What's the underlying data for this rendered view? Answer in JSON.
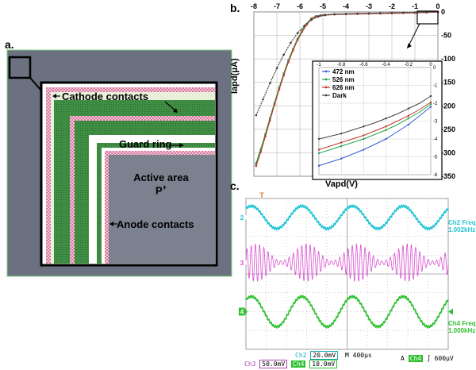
{
  "panels": {
    "a": {
      "label": "a.",
      "annotations": {
        "cathode": "Cathode contacts",
        "guard": "Guard ring",
        "active_line1": "Active area",
        "active_line2": "P",
        "active_sup": "+",
        "anode": "Anode contacts"
      },
      "colors": {
        "chip": "#6b7180",
        "metal": "#3f8e43",
        "contact": "#e9a0b8",
        "light": "#e8f0da"
      }
    },
    "b": {
      "label": "b.",
      "ylabel": "Iapd(μA)",
      "xlabel": "Vapd(V)",
      "inset_legend": [
        "472 nm",
        "526 nm",
        "626 nm",
        "Dark"
      ],
      "colors": {
        "472 nm": "#3b5bd6",
        "526 nm": "#21a64a",
        "626 nm": "#c0392b",
        "Dark": "#444444"
      }
    },
    "c": {
      "label": "c.",
      "marker_top": "T",
      "ch2_marker": "2",
      "ch3_marker": "3",
      "ch4_marker": "4",
      "ch2_right_line1": "Ch2 Freq",
      "ch2_right_line2": "1.002kHz",
      "ch4_right_line1": "Ch4 Freq",
      "ch4_right_line2": "1.000kHz",
      "status": {
        "ch2_label": "Ch2",
        "ch2_value": "20.0mV",
        "ch3_label": "Ch3",
        "ch3_value": "50.0mV",
        "ch4_label": "Ch4",
        "ch4_value": "10.0mV",
        "timebase": "M 400μs",
        "trigger_a": "A",
        "trigger_ch": "Ch4",
        "trigger_level": "600μV"
      },
      "colors": {
        "ch2": "#22c5d6",
        "ch3": "#d94fd0",
        "ch4": "#2fc12f",
        "trigger": "#e07b20"
      }
    }
  },
  "chart_data": [
    {
      "type": "line",
      "title": "",
      "xlabel": "Vapd(V)",
      "ylabel": "Iapd(μA)",
      "xlim": [
        -8,
        0
      ],
      "ylim": [
        -350,
        0
      ],
      "xticks": [
        "-8",
        "-7",
        "-6",
        "-5",
        "-4",
        "-3",
        "-2",
        "-1",
        "0"
      ],
      "yticks": [
        "0",
        "-50",
        "-100",
        "-150",
        "-200",
        "-250",
        "-300",
        "-350"
      ],
      "grid": true,
      "series": [
        {
          "name": "472 nm",
          "x": [
            -7.9,
            -7.7,
            -7.5,
            -7.3,
            -7.1,
            -6.9,
            -6.7,
            -6.5,
            -6.3,
            -6.1,
            -5.9,
            -5.7,
            -5.5,
            -5.3,
            -5.1,
            -4.9,
            -4.5,
            -4.0,
            -3.5,
            -3.0,
            -2.5,
            -2.0,
            -1.5,
            -1.0,
            -0.5,
            0
          ],
          "y": [
            -325,
            -295,
            -262,
            -228,
            -195,
            -163,
            -133,
            -105,
            -80,
            -58,
            -40,
            -26,
            -14,
            -9,
            -7,
            -6,
            -5,
            -4.5,
            -4,
            -3.5,
            -3,
            -2.5,
            -2,
            -1.5,
            -1,
            0
          ]
        },
        {
          "name": "526 nm",
          "x": [
            -7.9,
            -7.7,
            -7.5,
            -7.3,
            -7.1,
            -6.9,
            -6.7,
            -6.5,
            -6.3,
            -6.1,
            -5.9,
            -5.7,
            -5.5,
            -5.3,
            -5.1,
            -4.9,
            -4.5,
            -4.0,
            -3.5,
            -3.0,
            -2.5,
            -2.0,
            -1.5,
            -1.0,
            -0.5,
            0
          ],
          "y": [
            -322,
            -292,
            -260,
            -226,
            -193,
            -161,
            -131,
            -103,
            -79,
            -57,
            -39,
            -25,
            -14,
            -9,
            -7,
            -6,
            -5,
            -4.5,
            -4,
            -3.5,
            -3,
            -2.5,
            -2,
            -1.5,
            -1,
            0
          ]
        },
        {
          "name": "626 nm",
          "x": [
            -7.9,
            -7.7,
            -7.5,
            -7.3,
            -7.1,
            -6.9,
            -6.7,
            -6.5,
            -6.3,
            -6.1,
            -5.9,
            -5.7,
            -5.5,
            -5.3,
            -5.1,
            -4.9,
            -4.5,
            -4.0,
            -3.5,
            -3.0,
            -2.5,
            -2.0,
            -1.5,
            -1.0,
            -0.5,
            0
          ],
          "y": [
            -328,
            -298,
            -265,
            -231,
            -197,
            -165,
            -135,
            -107,
            -82,
            -60,
            -42,
            -27,
            -15,
            -10,
            -8,
            -6.5,
            -5.5,
            -5,
            -4.5,
            -4,
            -3.5,
            -3,
            -2.5,
            -2,
            -1,
            0
          ]
        },
        {
          "name": "Dark",
          "x": [
            -7.9,
            -7.6,
            -7.3,
            -7.0,
            -6.7,
            -6.4,
            -6.1,
            -5.8,
            -5.5,
            -5.2,
            -4.9,
            -4.5,
            -4.0,
            -3.5,
            -3.0,
            -2.5,
            -2.0,
            -1.5,
            -1.0,
            -0.5,
            0
          ],
          "y": [
            -220,
            -186,
            -152,
            -120,
            -91,
            -66,
            -45,
            -29,
            -17,
            -10,
            -7,
            -5,
            -4,
            -3.5,
            -3,
            -2.5,
            -2,
            -1.5,
            -1,
            -0.5,
            0
          ]
        }
      ]
    },
    {
      "type": "line",
      "title": "",
      "xlabel": "",
      "ylabel": "",
      "xlim": [
        -1,
        0
      ],
      "ylim": [
        -6,
        0
      ],
      "xticks": [
        "-1",
        "-0.8",
        "-0.6",
        "-0.4",
        "-0.2",
        "0"
      ],
      "yticks": [
        "0",
        "-1",
        "-2",
        "-3",
        "-4",
        "-5",
        "-6"
      ],
      "grid": true,
      "legend": "top-left",
      "series": [
        {
          "name": "472 nm",
          "x": [
            -1,
            -0.9,
            -0.8,
            -0.7,
            -0.6,
            -0.5,
            -0.4,
            -0.3,
            -0.2,
            -0.1,
            0
          ],
          "y": [
            -5.5,
            -5.3,
            -5.1,
            -4.85,
            -4.6,
            -4.3,
            -4.0,
            -3.6,
            -3.2,
            -2.7,
            -2.2
          ]
        },
        {
          "name": "526 nm",
          "x": [
            -1,
            -0.9,
            -0.8,
            -0.7,
            -0.6,
            -0.5,
            -0.4,
            -0.3,
            -0.2,
            -0.1,
            0
          ],
          "y": [
            -4.8,
            -4.6,
            -4.4,
            -4.2,
            -4.0,
            -3.75,
            -3.5,
            -3.2,
            -2.85,
            -2.5,
            -2.05
          ]
        },
        {
          "name": "626 nm",
          "x": [
            -1,
            -0.9,
            -0.8,
            -0.7,
            -0.6,
            -0.5,
            -0.4,
            -0.3,
            -0.2,
            -0.1,
            0
          ],
          "y": [
            -4.6,
            -4.4,
            -4.2,
            -4.0,
            -3.8,
            -3.55,
            -3.3,
            -3.0,
            -2.7,
            -2.35,
            -1.95
          ]
        },
        {
          "name": "Dark",
          "x": [
            -1,
            -0.9,
            -0.8,
            -0.7,
            -0.6,
            -0.5,
            -0.4,
            -0.3,
            -0.2,
            -0.1,
            0
          ],
          "y": [
            -4.0,
            -3.85,
            -3.7,
            -3.5,
            -3.3,
            -3.1,
            -2.85,
            -2.6,
            -2.3,
            -2.0,
            -1.6
          ]
        }
      ]
    },
    {
      "type": "line",
      "title": "",
      "xlabel": "",
      "ylabel": "",
      "series": [
        {
          "name": "Ch2",
          "waveform": "sine",
          "cycles": 4,
          "amplitude_div": 0.6,
          "offset_div": 3.0
        },
        {
          "name": "Ch3",
          "waveform": "amplitude-modulated",
          "cycles": 4,
          "carrier_cycles": 48,
          "amplitude_div": 1.0,
          "offset_div": 0.6
        },
        {
          "name": "Ch4",
          "waveform": "sine",
          "cycles": 4,
          "amplitude_div": 0.8,
          "offset_div": -2.0
        }
      ]
    }
  ]
}
